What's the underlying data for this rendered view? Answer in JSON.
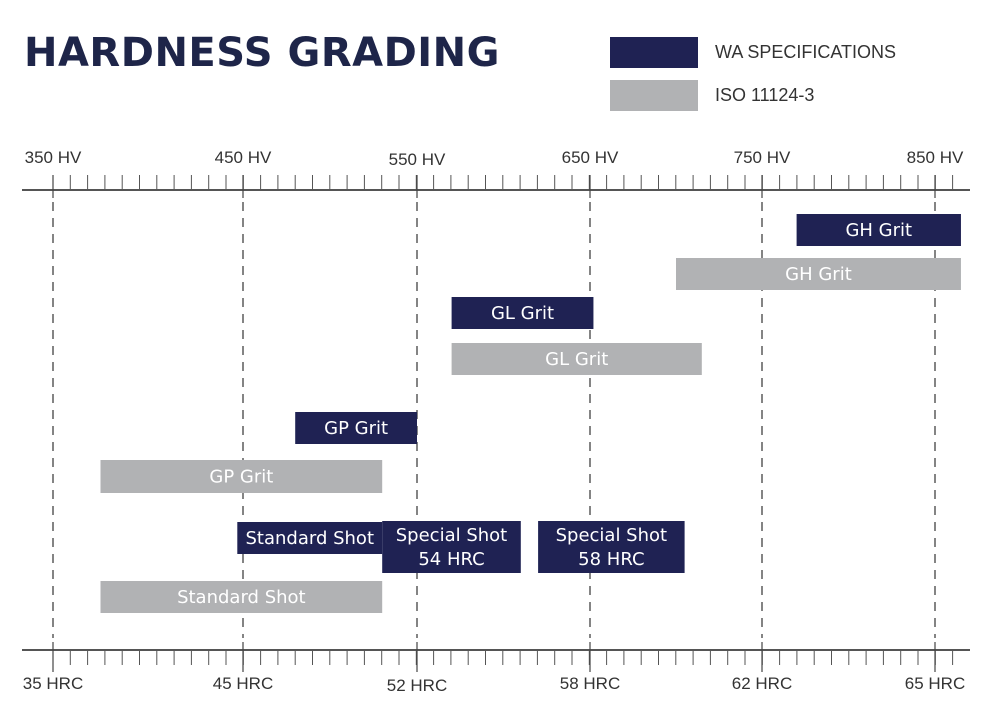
{
  "header": {
    "title": "HARDNESS GRADING"
  },
  "legend": [
    {
      "label": "WA SPECIFICATIONS",
      "color": "#1f2253"
    },
    {
      "label": "ISO 11124-3",
      "color": "#b1b2b4"
    }
  ],
  "chart_data": {
    "type": "range-bar",
    "top_axis": {
      "unit": "HV",
      "tick_labels": [
        "350 HV",
        "450 HV",
        "550 HV",
        "650 HV",
        "750 HV",
        "850 HV"
      ],
      "values": [
        350,
        450,
        550,
        650,
        750,
        850
      ]
    },
    "bottom_axis": {
      "unit": "HRC",
      "tick_labels": [
        "35 HRC",
        "45 HRC",
        "52 HRC",
        "58 HRC",
        "62 HRC",
        "65 HRC"
      ]
    },
    "grid": true,
    "legend_position": "top-right",
    "bars": [
      {
        "label": "GH Grit",
        "series": "WA SPECIFICATIONS",
        "start_hv": 770,
        "end_hv": 865
      },
      {
        "label": "GH Grit",
        "series": "ISO 11124-3",
        "start_hv": 700,
        "end_hv": 865
      },
      {
        "label": "GL Grit",
        "series": "WA SPECIFICATIONS",
        "start_hv": 570,
        "end_hv": 652
      },
      {
        "label": "GL Grit",
        "series": "ISO 11124-3",
        "start_hv": 570,
        "end_hv": 715
      },
      {
        "label": "GP Grit",
        "series": "WA SPECIFICATIONS",
        "start_hv": 480,
        "end_hv": 550
      },
      {
        "label": "GP Grit",
        "series": "ISO 11124-3",
        "start_hv": 375,
        "end_hv": 530
      },
      {
        "label": "Standard Shot",
        "series": "WA SPECIFICATIONS",
        "start_hv": 447,
        "end_hv": 530
      },
      {
        "label": "Special Shot\n54 HRC",
        "series": "WA SPECIFICATIONS",
        "start_hv": 530,
        "end_hv": 610
      },
      {
        "label": "Special Shot\n58 HRC",
        "series": "WA SPECIFICATIONS",
        "start_hv": 620,
        "end_hv": 705
      },
      {
        "label": "Standard Shot",
        "series": "ISO 11124-3",
        "start_hv": 375,
        "end_hv": 530
      }
    ]
  }
}
